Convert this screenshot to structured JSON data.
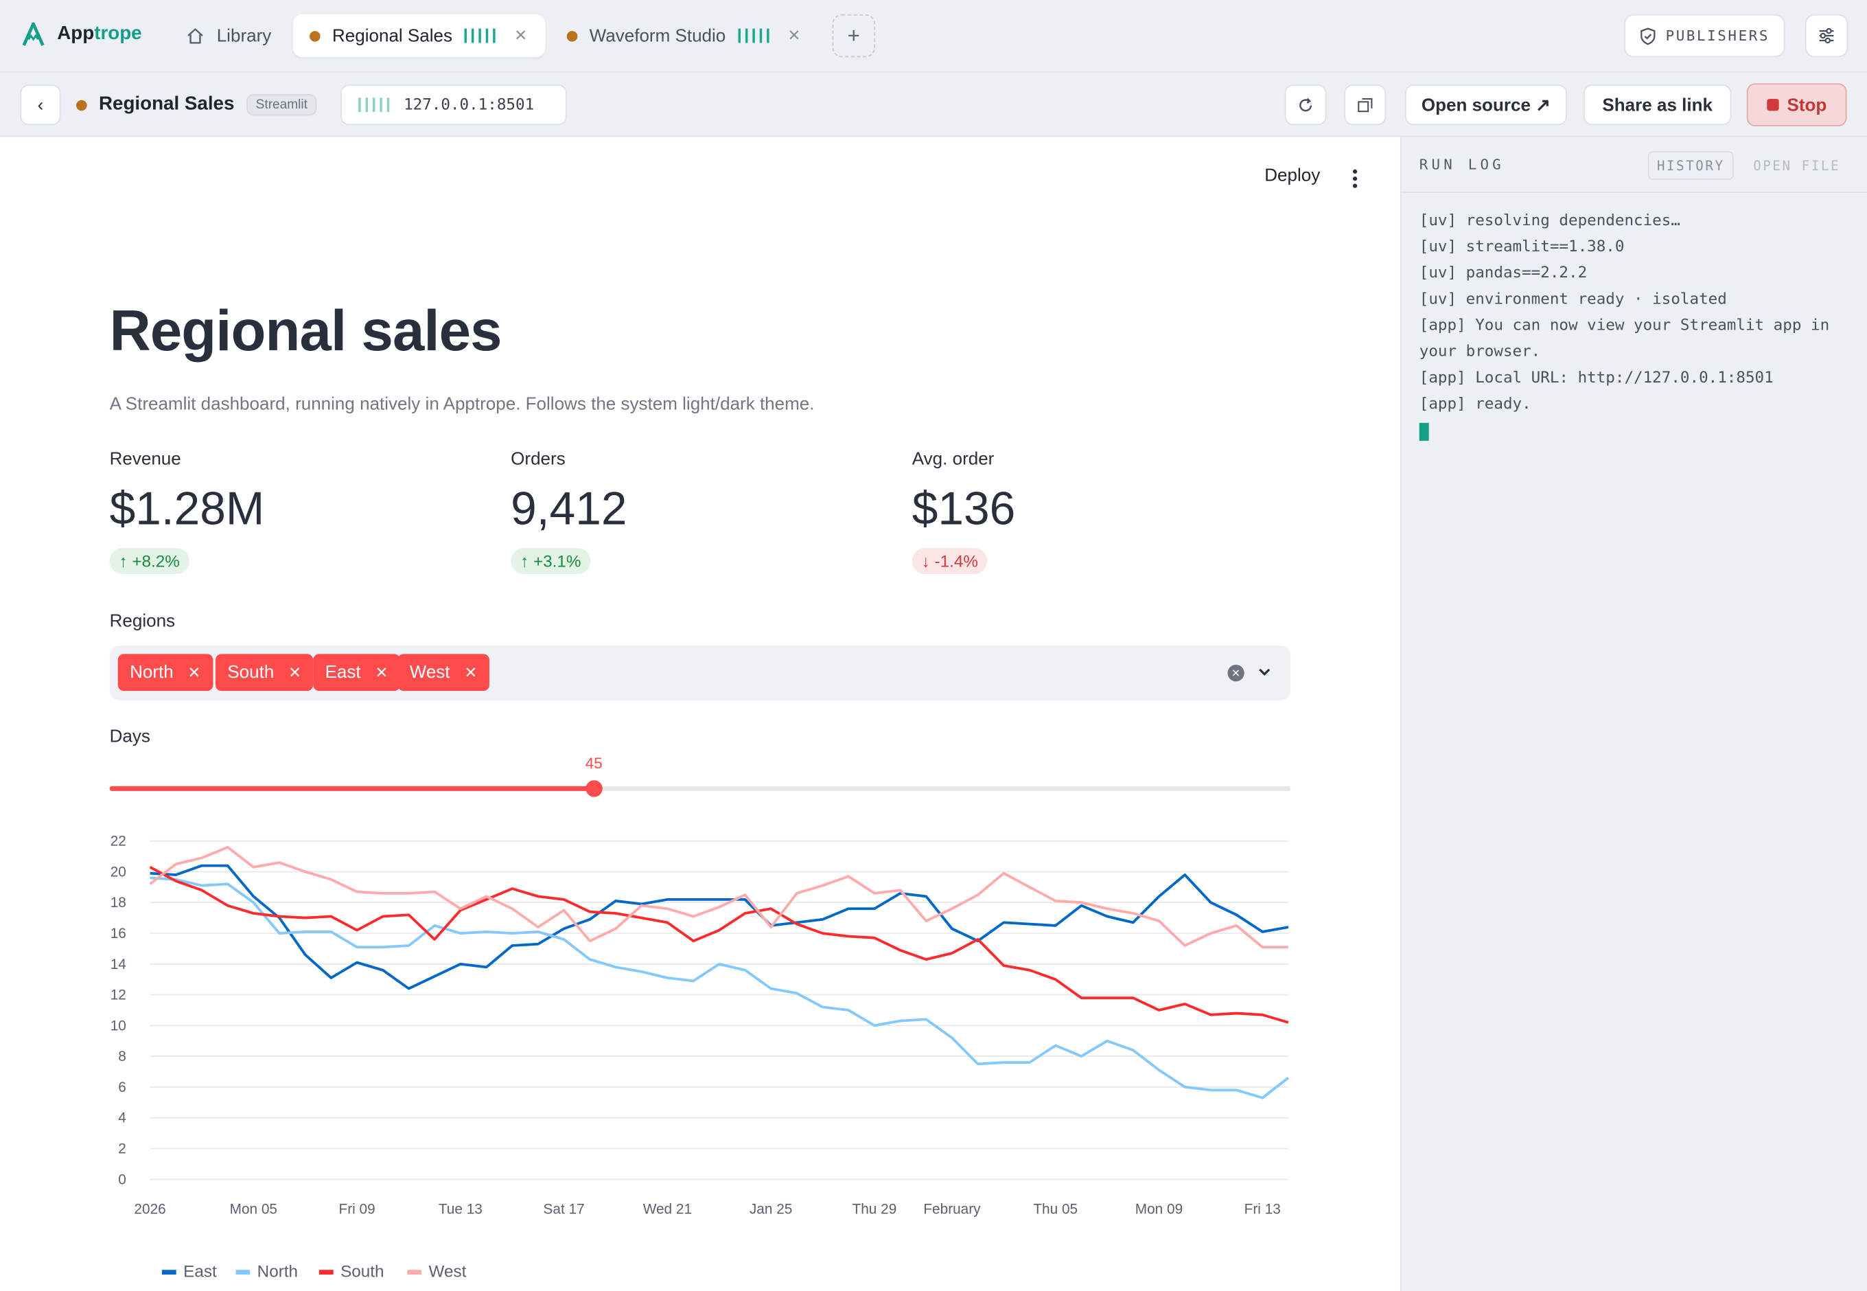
{
  "brand": {
    "name_a": "App",
    "name_b": "trope"
  },
  "tabs": [
    {
      "label": "Library"
    },
    {
      "label": "Regional Sales",
      "active": true
    },
    {
      "label": "Waveform Studio"
    }
  ],
  "publishers_label": "PUBLISHERS",
  "toolbar": {
    "app_title": "Regional Sales",
    "badge": "Streamlit",
    "url": "127.0.0.1:8501",
    "open_source": "Open source ↗",
    "share": "Share as link",
    "stop": "Stop"
  },
  "app": {
    "deploy": "Deploy",
    "title": "Regional sales",
    "subtitle": "A Streamlit dashboard, running natively in Apptrope. Follows the system light/dark theme.",
    "metrics": [
      {
        "label": "Revenue",
        "value": "$1.28M",
        "delta": "+8.2%",
        "dir": "up"
      },
      {
        "label": "Orders",
        "value": "9,412",
        "delta": "+3.1%",
        "dir": "up"
      },
      {
        "label": "Avg. order",
        "value": "$136",
        "delta": "-1.4%",
        "dir": "down"
      }
    ],
    "regions_label": "Regions",
    "regions": [
      "North",
      "South",
      "East",
      "West"
    ],
    "days_label": "Days",
    "days_value": "45",
    "days_fraction": 0.41
  },
  "chart_data": {
    "type": "line",
    "ylim": [
      0,
      22
    ],
    "yticks": [
      0,
      2,
      4,
      6,
      8,
      10,
      12,
      14,
      16,
      18,
      20,
      22
    ],
    "xtick_labels": [
      "2026",
      "Mon 05",
      "Fri 09",
      "Tue 13",
      "Sat 17",
      "Wed 21",
      "Jan 25",
      "Thu 29",
      "February",
      "Thu 05",
      "Mon 09",
      "Fri 13"
    ],
    "xtick_index": [
      0,
      4,
      8,
      12,
      16,
      20,
      24,
      28,
      31,
      35,
      39,
      43
    ],
    "n_points": 45,
    "series": [
      {
        "name": "East",
        "color": "#0068c9",
        "values": [
          19.9,
          19.8,
          20.4,
          20.4,
          18.4,
          17.0,
          14.6,
          13.1,
          14.1,
          13.6,
          12.4,
          13.2,
          14.0,
          13.8,
          15.2,
          15.3,
          16.3,
          16.9,
          18.1,
          17.9,
          18.2,
          18.2,
          18.2,
          18.2,
          16.5,
          16.7,
          16.9,
          17.6,
          17.6,
          18.6,
          18.4,
          16.3,
          15.5,
          16.7,
          16.6,
          16.5,
          17.8,
          17.1,
          16.7,
          18.4,
          19.8,
          18.0,
          17.2,
          16.1,
          16.4
        ]
      },
      {
        "name": "North",
        "color": "#83c9ff",
        "values": [
          19.6,
          19.5,
          19.1,
          19.2,
          18.0,
          16.0,
          16.1,
          16.1,
          15.1,
          15.1,
          15.2,
          16.5,
          16.0,
          16.1,
          16.0,
          16.1,
          15.6,
          14.3,
          13.8,
          13.5,
          13.1,
          12.9,
          14.0,
          13.6,
          12.4,
          12.1,
          11.2,
          11.0,
          10.0,
          10.3,
          10.4,
          9.2,
          7.5,
          7.6,
          7.6,
          8.7,
          8.0,
          9.0,
          8.4,
          7.1,
          6.0,
          5.8,
          5.8,
          5.3,
          6.6
        ]
      },
      {
        "name": "South",
        "color": "#ff2b2b",
        "values": [
          20.3,
          19.4,
          18.8,
          17.8,
          17.3,
          17.1,
          17.0,
          17.1,
          16.2,
          17.1,
          17.2,
          15.6,
          17.5,
          18.2,
          18.9,
          18.4,
          18.2,
          17.4,
          17.3,
          17.0,
          16.7,
          15.5,
          16.2,
          17.3,
          17.6,
          16.6,
          16.0,
          15.8,
          15.7,
          14.9,
          14.3,
          14.7,
          15.6,
          13.9,
          13.6,
          13.0,
          11.8,
          11.8,
          11.8,
          11.0,
          11.4,
          10.7,
          10.8,
          10.7,
          10.2
        ]
      },
      {
        "name": "West",
        "color": "#ffabab",
        "values": [
          19.2,
          20.5,
          20.9,
          21.6,
          20.3,
          20.6,
          20.0,
          19.5,
          18.7,
          18.6,
          18.6,
          18.7,
          17.6,
          18.4,
          17.6,
          16.4,
          17.5,
          15.5,
          16.3,
          17.8,
          17.6,
          17.1,
          17.7,
          18.5,
          16.4,
          18.6,
          19.1,
          19.7,
          18.6,
          18.8,
          16.8,
          17.6,
          18.5,
          19.9,
          19.0,
          18.1,
          18.0,
          17.6,
          17.3,
          16.8,
          15.2,
          16.0,
          16.5,
          15.1,
          15.1
        ]
      }
    ]
  },
  "runlog": {
    "title": "RUN LOG",
    "history": "HISTORY",
    "open_file": "OPEN FILE",
    "lines": [
      "[uv] resolving dependencies…",
      "[uv] streamlit==1.38.0",
      "[uv] pandas==2.2.2",
      "[uv] environment ready · isolated",
      "[app] You can now view your Streamlit app in your browser.",
      "[app] Local URL: http://127.0.0.1:8501",
      "[app] ready."
    ]
  }
}
